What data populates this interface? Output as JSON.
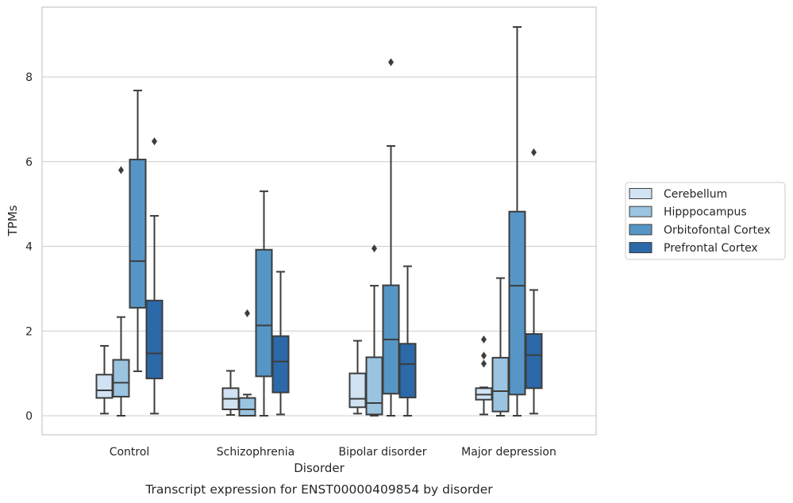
{
  "chart_data": {
    "type": "box",
    "xlabel": "Disorder",
    "ylabel": "TPMs",
    "caption": "Transcript expression for ENST00000409854 by disorder",
    "categories": [
      "Control",
      "Schizophrenia",
      "Bipolar disorder",
      "Major depression"
    ],
    "ylim": [
      -0.45,
      9.6
    ],
    "yticks": [
      0,
      2,
      4,
      6,
      8
    ],
    "grid": true,
    "legend_position": "right",
    "series": [
      {
        "name": "Cerebellum",
        "color": "#d1e2f2",
        "boxes": [
          {
            "whislo": 0.05,
            "q1": 0.42,
            "med": 0.6,
            "q3": 0.97,
            "whishi": 1.65,
            "fliers": []
          },
          {
            "whislo": 0.02,
            "q1": 0.15,
            "med": 0.4,
            "q3": 0.65,
            "whishi": 1.06,
            "fliers": []
          },
          {
            "whislo": 0.05,
            "q1": 0.2,
            "med": 0.4,
            "q3": 1.0,
            "whishi": 1.77,
            "fliers": []
          },
          {
            "whislo": 0.03,
            "q1": 0.38,
            "med": 0.5,
            "q3": 0.65,
            "whishi": 0.67,
            "fliers": [
              1.23,
              1.42,
              1.8
            ]
          }
        ]
      },
      {
        "name": "Hipppocampus",
        "color": "#9ac4e0",
        "boxes": [
          {
            "whislo": 0.0,
            "q1": 0.45,
            "med": 0.78,
            "q3": 1.32,
            "whishi": 2.33,
            "fliers": [
              5.8
            ]
          },
          {
            "whislo": 0.0,
            "q1": 0.0,
            "med": 0.15,
            "q3": 0.42,
            "whishi": 0.5,
            "fliers": [
              2.42
            ]
          },
          {
            "whislo": 0.0,
            "q1": 0.03,
            "med": 0.3,
            "q3": 1.38,
            "whishi": 3.07,
            "fliers": [
              3.95
            ]
          },
          {
            "whislo": 0.0,
            "q1": 0.1,
            "med": 0.58,
            "q3": 1.37,
            "whishi": 3.25,
            "fliers": []
          }
        ]
      },
      {
        "name": "Orbitofontal Cortex",
        "color": "#5596c6",
        "boxes": [
          {
            "whislo": 1.05,
            "q1": 2.55,
            "med": 3.65,
            "q3": 6.05,
            "whishi": 7.68,
            "fliers": []
          },
          {
            "whislo": 0.0,
            "q1": 0.93,
            "med": 2.13,
            "q3": 3.92,
            "whishi": 5.3,
            "fliers": []
          },
          {
            "whislo": 0.0,
            "q1": 0.52,
            "med": 1.8,
            "q3": 3.08,
            "whishi": 6.37,
            "fliers": [
              8.35
            ]
          },
          {
            "whislo": 0.0,
            "q1": 0.5,
            "med": 3.07,
            "q3": 4.82,
            "whishi": 9.18,
            "fliers": []
          }
        ]
      },
      {
        "name": "Prefrontal Cortex",
        "color": "#2b69a8",
        "boxes": [
          {
            "whislo": 0.05,
            "q1": 0.88,
            "med": 1.47,
            "q3": 2.72,
            "whishi": 4.72,
            "fliers": [
              6.48
            ]
          },
          {
            "whislo": 0.03,
            "q1": 0.55,
            "med": 1.28,
            "q3": 1.88,
            "whishi": 3.4,
            "fliers": []
          },
          {
            "whislo": 0.0,
            "q1": 0.43,
            "med": 1.22,
            "q3": 1.7,
            "whishi": 3.53,
            "fliers": []
          },
          {
            "whislo": 0.05,
            "q1": 0.65,
            "med": 1.43,
            "q3": 1.93,
            "whishi": 2.97,
            "fliers": [
              6.22
            ]
          }
        ]
      }
    ]
  }
}
